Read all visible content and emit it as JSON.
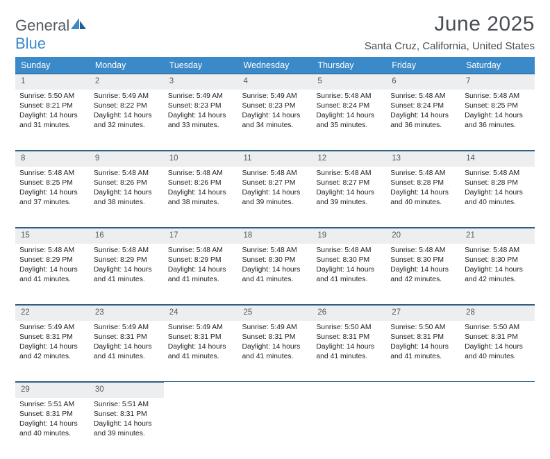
{
  "logo": {
    "word1": "General",
    "word2": "Blue"
  },
  "title": "June 2025",
  "location": "Santa Cruz, California, United States",
  "colors": {
    "header_bg": "#3a89c9",
    "header_text": "#ffffff",
    "daynum_bg": "#eceeef",
    "border": "#2f5d84",
    "title_color": "#4a4f54",
    "logo_gray": "#555b60",
    "logo_blue": "#3a89c9"
  },
  "weekdays": [
    "Sunday",
    "Monday",
    "Tuesday",
    "Wednesday",
    "Thursday",
    "Friday",
    "Saturday"
  ],
  "weeks": [
    [
      {
        "n": "1",
        "sr": "5:50 AM",
        "ss": "8:21 PM",
        "dl": "14 hours and 31 minutes."
      },
      {
        "n": "2",
        "sr": "5:49 AM",
        "ss": "8:22 PM",
        "dl": "14 hours and 32 minutes."
      },
      {
        "n": "3",
        "sr": "5:49 AM",
        "ss": "8:23 PM",
        "dl": "14 hours and 33 minutes."
      },
      {
        "n": "4",
        "sr": "5:49 AM",
        "ss": "8:23 PM",
        "dl": "14 hours and 34 minutes."
      },
      {
        "n": "5",
        "sr": "5:48 AM",
        "ss": "8:24 PM",
        "dl": "14 hours and 35 minutes."
      },
      {
        "n": "6",
        "sr": "5:48 AM",
        "ss": "8:24 PM",
        "dl": "14 hours and 36 minutes."
      },
      {
        "n": "7",
        "sr": "5:48 AM",
        "ss": "8:25 PM",
        "dl": "14 hours and 36 minutes."
      }
    ],
    [
      {
        "n": "8",
        "sr": "5:48 AM",
        "ss": "8:25 PM",
        "dl": "14 hours and 37 minutes."
      },
      {
        "n": "9",
        "sr": "5:48 AM",
        "ss": "8:26 PM",
        "dl": "14 hours and 38 minutes."
      },
      {
        "n": "10",
        "sr": "5:48 AM",
        "ss": "8:26 PM",
        "dl": "14 hours and 38 minutes."
      },
      {
        "n": "11",
        "sr": "5:48 AM",
        "ss": "8:27 PM",
        "dl": "14 hours and 39 minutes."
      },
      {
        "n": "12",
        "sr": "5:48 AM",
        "ss": "8:27 PM",
        "dl": "14 hours and 39 minutes."
      },
      {
        "n": "13",
        "sr": "5:48 AM",
        "ss": "8:28 PM",
        "dl": "14 hours and 40 minutes."
      },
      {
        "n": "14",
        "sr": "5:48 AM",
        "ss": "8:28 PM",
        "dl": "14 hours and 40 minutes."
      }
    ],
    [
      {
        "n": "15",
        "sr": "5:48 AM",
        "ss": "8:29 PM",
        "dl": "14 hours and 41 minutes."
      },
      {
        "n": "16",
        "sr": "5:48 AM",
        "ss": "8:29 PM",
        "dl": "14 hours and 41 minutes."
      },
      {
        "n": "17",
        "sr": "5:48 AM",
        "ss": "8:29 PM",
        "dl": "14 hours and 41 minutes."
      },
      {
        "n": "18",
        "sr": "5:48 AM",
        "ss": "8:30 PM",
        "dl": "14 hours and 41 minutes."
      },
      {
        "n": "19",
        "sr": "5:48 AM",
        "ss": "8:30 PM",
        "dl": "14 hours and 41 minutes."
      },
      {
        "n": "20",
        "sr": "5:48 AM",
        "ss": "8:30 PM",
        "dl": "14 hours and 42 minutes."
      },
      {
        "n": "21",
        "sr": "5:48 AM",
        "ss": "8:30 PM",
        "dl": "14 hours and 42 minutes."
      }
    ],
    [
      {
        "n": "22",
        "sr": "5:49 AM",
        "ss": "8:31 PM",
        "dl": "14 hours and 42 minutes."
      },
      {
        "n": "23",
        "sr": "5:49 AM",
        "ss": "8:31 PM",
        "dl": "14 hours and 41 minutes."
      },
      {
        "n": "24",
        "sr": "5:49 AM",
        "ss": "8:31 PM",
        "dl": "14 hours and 41 minutes."
      },
      {
        "n": "25",
        "sr": "5:49 AM",
        "ss": "8:31 PM",
        "dl": "14 hours and 41 minutes."
      },
      {
        "n": "26",
        "sr": "5:50 AM",
        "ss": "8:31 PM",
        "dl": "14 hours and 41 minutes."
      },
      {
        "n": "27",
        "sr": "5:50 AM",
        "ss": "8:31 PM",
        "dl": "14 hours and 41 minutes."
      },
      {
        "n": "28",
        "sr": "5:50 AM",
        "ss": "8:31 PM",
        "dl": "14 hours and 40 minutes."
      }
    ],
    [
      {
        "n": "29",
        "sr": "5:51 AM",
        "ss": "8:31 PM",
        "dl": "14 hours and 40 minutes."
      },
      {
        "n": "30",
        "sr": "5:51 AM",
        "ss": "8:31 PM",
        "dl": "14 hours and 39 minutes."
      },
      null,
      null,
      null,
      null,
      null
    ]
  ],
  "labels": {
    "sunrise": "Sunrise: ",
    "sunset": "Sunset: ",
    "daylight": "Daylight: "
  }
}
